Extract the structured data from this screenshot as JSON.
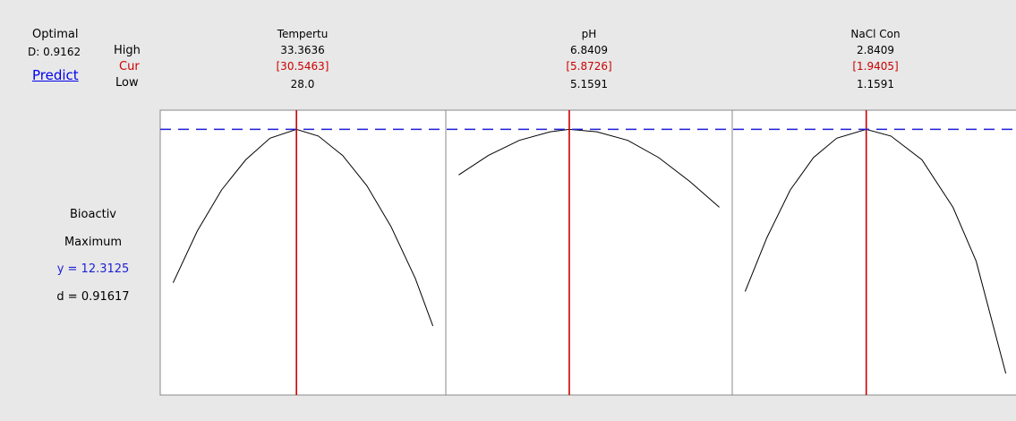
{
  "header": {
    "optimal_label": "Optimal",
    "d_value": "D: 0.9162",
    "predict_label": "Predict",
    "high_label": "High",
    "cur_label": "Cur",
    "low_label": "Low"
  },
  "response": {
    "name": "Bioactiv",
    "goal": "Maximum",
    "y_text": "y = 12.3125",
    "d_text": "d = 0.91617"
  },
  "factors": [
    {
      "name": "Tempertu",
      "high": "33.3636",
      "cur": "[30.5463]",
      "low": "28.0"
    },
    {
      "name": "pH",
      "high": "6.8409",
      "cur": "[5.8726]",
      "low": "5.1591"
    },
    {
      "name": "NaCl Con",
      "high": "2.8409",
      "cur": "[1.9405]",
      "low": "1.1591"
    }
  ],
  "colors": {
    "current_line": "#cc0000",
    "optimum_line": "#1f1fd6",
    "curve": "#000000",
    "panel_bg": "#ffffff",
    "background": "#e8e8e8"
  },
  "chart_data": {
    "type": "line",
    "y_optimum": 12.3125,
    "panels": [
      {
        "factor": "Tempertu",
        "x_range": [
          28.0,
          33.3636
        ],
        "current_x": 30.5463,
        "x": [
          28.0,
          28.5,
          29.0,
          29.5,
          30.0,
          30.5463,
          31.0,
          31.5,
          32.0,
          32.5,
          33.0,
          33.3636
        ],
        "y": [
          5.2,
          7.6,
          9.5,
          10.9,
          11.9,
          12.3125,
          12.0,
          11.1,
          9.7,
          7.8,
          5.4,
          3.2
        ]
      },
      {
        "factor": "pH",
        "x_range": [
          5.1591,
          6.8409
        ],
        "current_x": 5.8726,
        "x": [
          5.1591,
          5.35,
          5.55,
          5.75,
          5.8726,
          6.05,
          6.25,
          6.45,
          6.65,
          6.8409
        ],
        "y": [
          10.2,
          11.1,
          11.8,
          12.2,
          12.3125,
          12.2,
          11.8,
          11.0,
          9.9,
          8.7
        ]
      },
      {
        "factor": "NaCl Con",
        "x_range": [
          1.1591,
          2.8409
        ],
        "current_x": 1.9405,
        "x": [
          1.1591,
          1.3,
          1.45,
          1.6,
          1.75,
          1.9405,
          2.1,
          2.3,
          2.5,
          2.65,
          2.8409
        ],
        "y": [
          4.8,
          7.3,
          9.5,
          11.0,
          11.9,
          12.3125,
          12.0,
          10.9,
          8.7,
          6.2,
          1.0
        ]
      }
    ]
  }
}
